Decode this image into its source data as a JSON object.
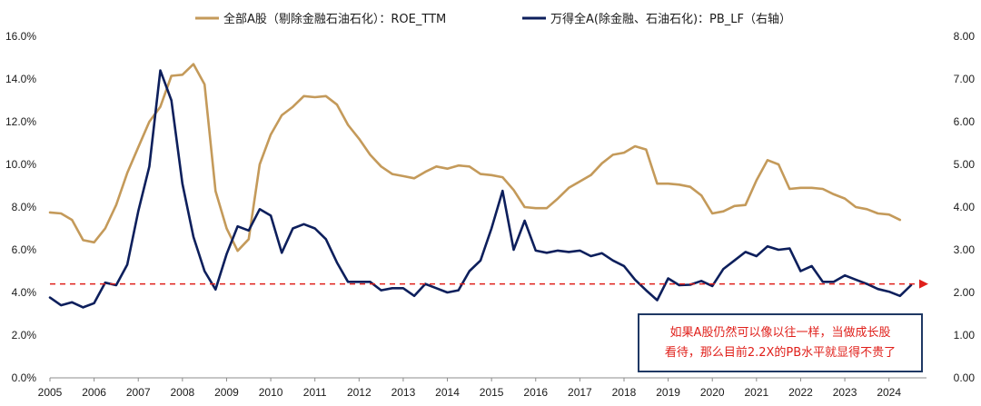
{
  "chart_data": {
    "type": "line",
    "x_range": [
      2005,
      2024.85
    ],
    "x_ticks": [
      "2005",
      "2006",
      "2007",
      "2008",
      "2009",
      "2010",
      "2011",
      "2012",
      "2013",
      "2014",
      "2015",
      "2016",
      "2017",
      "2018",
      "2019",
      "2020",
      "2021",
      "2022",
      "2023",
      "2024"
    ],
    "y_left": {
      "range": [
        0,
        16
      ],
      "ticks": [
        "0.0%",
        "2.0%",
        "4.0%",
        "6.0%",
        "8.0%",
        "10.0%",
        "12.0%",
        "14.0%",
        "16.0%"
      ]
    },
    "y_right": {
      "range": [
        0,
        8
      ],
      "ticks": [
        "0.00",
        "1.00",
        "2.00",
        "3.00",
        "4.00",
        "5.00",
        "6.00",
        "7.00",
        "8.00"
      ]
    },
    "series": [
      {
        "name": "全部A股（剔除金融石油石化）：ROE_TTM",
        "axis": "left",
        "color": "#c49a5a",
        "points": [
          [
            2005.0,
            7.75
          ],
          [
            2005.25,
            7.7
          ],
          [
            2005.5,
            7.4
          ],
          [
            2005.75,
            6.45
          ],
          [
            2006.0,
            6.35
          ],
          [
            2006.25,
            7.0
          ],
          [
            2006.5,
            8.1
          ],
          [
            2006.75,
            9.6
          ],
          [
            2007.0,
            10.8
          ],
          [
            2007.25,
            12.0
          ],
          [
            2007.5,
            12.7
          ],
          [
            2007.75,
            14.15
          ],
          [
            2008.0,
            14.2
          ],
          [
            2008.25,
            14.7
          ],
          [
            2008.5,
            13.75
          ],
          [
            2008.75,
            8.75
          ],
          [
            2009.0,
            7.0
          ],
          [
            2009.25,
            5.95
          ],
          [
            2009.5,
            6.5
          ],
          [
            2009.75,
            10.0
          ],
          [
            2010.0,
            11.4
          ],
          [
            2010.25,
            12.3
          ],
          [
            2010.5,
            12.7
          ],
          [
            2010.75,
            13.2
          ],
          [
            2011.0,
            13.15
          ],
          [
            2011.25,
            13.2
          ],
          [
            2011.5,
            12.8
          ],
          [
            2011.75,
            11.85
          ],
          [
            2012.0,
            11.2
          ],
          [
            2012.25,
            10.45
          ],
          [
            2012.5,
            9.9
          ],
          [
            2012.75,
            9.55
          ],
          [
            2013.0,
            9.45
          ],
          [
            2013.25,
            9.35
          ],
          [
            2013.5,
            9.65
          ],
          [
            2013.75,
            9.9
          ],
          [
            2014.0,
            9.8
          ],
          [
            2014.25,
            9.95
          ],
          [
            2014.5,
            9.9
          ],
          [
            2014.75,
            9.55
          ],
          [
            2015.0,
            9.5
          ],
          [
            2015.25,
            9.4
          ],
          [
            2015.5,
            8.8
          ],
          [
            2015.75,
            8.0
          ],
          [
            2016.0,
            7.95
          ],
          [
            2016.25,
            7.95
          ],
          [
            2016.5,
            8.4
          ],
          [
            2016.75,
            8.9
          ],
          [
            2017.0,
            9.2
          ],
          [
            2017.25,
            9.5
          ],
          [
            2017.5,
            10.05
          ],
          [
            2017.75,
            10.45
          ],
          [
            2018.0,
            10.55
          ],
          [
            2018.25,
            10.85
          ],
          [
            2018.5,
            10.7
          ],
          [
            2018.75,
            9.1
          ],
          [
            2019.0,
            9.1
          ],
          [
            2019.25,
            9.05
          ],
          [
            2019.5,
            8.95
          ],
          [
            2019.75,
            8.55
          ],
          [
            2020.0,
            7.7
          ],
          [
            2020.25,
            7.8
          ],
          [
            2020.5,
            8.05
          ],
          [
            2020.75,
            8.1
          ],
          [
            2021.0,
            9.25
          ],
          [
            2021.25,
            10.2
          ],
          [
            2021.5,
            10.0
          ],
          [
            2021.75,
            8.85
          ],
          [
            2022.0,
            8.9
          ],
          [
            2022.25,
            8.9
          ],
          [
            2022.5,
            8.85
          ],
          [
            2022.75,
            8.6
          ],
          [
            2023.0,
            8.4
          ],
          [
            2023.25,
            8.0
          ],
          [
            2023.5,
            7.9
          ],
          [
            2023.75,
            7.7
          ],
          [
            2024.0,
            7.65
          ],
          [
            2024.25,
            7.4
          ]
        ]
      },
      {
        "name": "万得全A(除金融、石油石化)：PB_LF（右轴）",
        "axis": "right",
        "color": "#0d1f5c",
        "points": [
          [
            2005.0,
            1.88
          ],
          [
            2005.25,
            1.7
          ],
          [
            2005.5,
            1.77
          ],
          [
            2005.75,
            1.65
          ],
          [
            2006.0,
            1.75
          ],
          [
            2006.25,
            2.23
          ],
          [
            2006.5,
            2.17
          ],
          [
            2006.75,
            2.65
          ],
          [
            2007.0,
            3.9
          ],
          [
            2007.25,
            4.95
          ],
          [
            2007.5,
            7.2
          ],
          [
            2007.75,
            6.5
          ],
          [
            2008.0,
            4.55
          ],
          [
            2008.25,
            3.3
          ],
          [
            2008.5,
            2.5
          ],
          [
            2008.75,
            2.07
          ],
          [
            2009.0,
            2.9
          ],
          [
            2009.25,
            3.55
          ],
          [
            2009.5,
            3.45
          ],
          [
            2009.75,
            3.95
          ],
          [
            2010.0,
            3.8
          ],
          [
            2010.25,
            2.93
          ],
          [
            2010.5,
            3.5
          ],
          [
            2010.75,
            3.6
          ],
          [
            2011.0,
            3.5
          ],
          [
            2011.25,
            3.25
          ],
          [
            2011.5,
            2.7
          ],
          [
            2011.75,
            2.25
          ],
          [
            2012.0,
            2.25
          ],
          [
            2012.25,
            2.25
          ],
          [
            2012.5,
            2.05
          ],
          [
            2012.75,
            2.1
          ],
          [
            2013.0,
            2.1
          ],
          [
            2013.25,
            1.92
          ],
          [
            2013.5,
            2.2
          ],
          [
            2013.75,
            2.1
          ],
          [
            2014.0,
            2.0
          ],
          [
            2014.25,
            2.05
          ],
          [
            2014.5,
            2.5
          ],
          [
            2014.75,
            2.75
          ],
          [
            2015.0,
            3.5
          ],
          [
            2015.25,
            4.38
          ],
          [
            2015.5,
            3.0
          ],
          [
            2015.75,
            3.68
          ],
          [
            2016.0,
            2.98
          ],
          [
            2016.25,
            2.93
          ],
          [
            2016.5,
            2.98
          ],
          [
            2016.75,
            2.95
          ],
          [
            2017.0,
            2.98
          ],
          [
            2017.25,
            2.85
          ],
          [
            2017.5,
            2.92
          ],
          [
            2017.75,
            2.75
          ],
          [
            2018.0,
            2.62
          ],
          [
            2018.25,
            2.3
          ],
          [
            2018.5,
            2.05
          ],
          [
            2018.75,
            1.82
          ],
          [
            2019.0,
            2.33
          ],
          [
            2019.25,
            2.17
          ],
          [
            2019.5,
            2.18
          ],
          [
            2019.75,
            2.27
          ],
          [
            2020.0,
            2.15
          ],
          [
            2020.25,
            2.55
          ],
          [
            2020.5,
            2.75
          ],
          [
            2020.75,
            2.95
          ],
          [
            2021.0,
            2.85
          ],
          [
            2021.25,
            3.08
          ],
          [
            2021.5,
            3.0
          ],
          [
            2021.75,
            3.03
          ],
          [
            2022.0,
            2.5
          ],
          [
            2022.25,
            2.62
          ],
          [
            2022.5,
            2.25
          ],
          [
            2022.75,
            2.25
          ],
          [
            2023.0,
            2.4
          ],
          [
            2023.25,
            2.3
          ],
          [
            2023.5,
            2.2
          ],
          [
            2023.75,
            2.08
          ],
          [
            2024.0,
            2.02
          ],
          [
            2024.25,
            1.92
          ],
          [
            2024.5,
            2.17
          ]
        ]
      }
    ],
    "reference_line": {
      "axis": "right",
      "value": 2.2,
      "color": "#e0201b",
      "style": "dashed",
      "arrow": "right"
    },
    "annotation": "如果A股仍然可以像以往一样，当做成长股看待，那么目前2.2X的PB水平就显得不贵了",
    "annotation_lines": [
      "如果A股仍然可以像以往一样，当做成长股",
      "看待，那么目前2.2X的PB水平就显得不贵了"
    ],
    "legend_position": "top",
    "grid": false
  }
}
